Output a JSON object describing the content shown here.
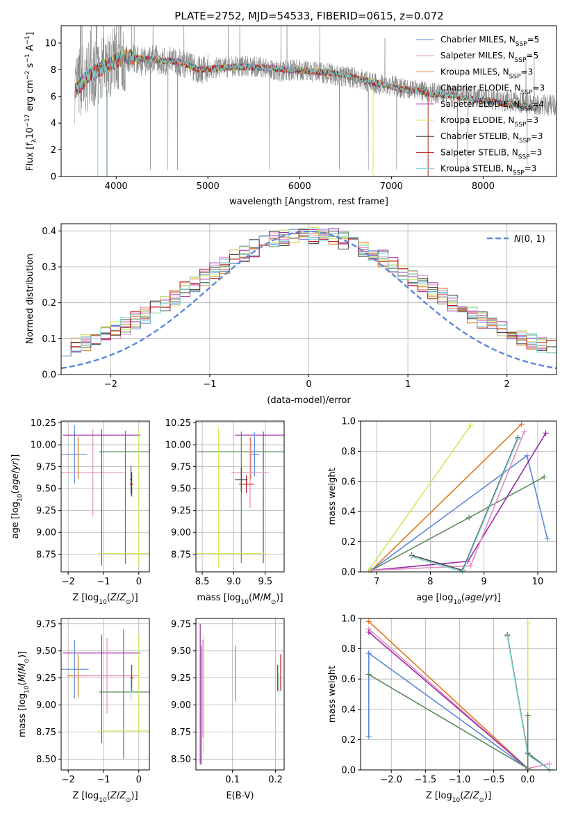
{
  "figure_title": "PLATE=2752, MJD=54533, FIBERID=0615, z=0.072",
  "colors": {
    "chabrier_miles": "#5b86dd",
    "salpeter_miles": "#e38cc0",
    "kroupa_miles": "#e0771c",
    "chabrier_elodie": "#5a8a5a",
    "salpeter_elodie": "#9b2aa8",
    "kroupa_elodie": "#cfe85a",
    "chabrier_stelib": "#444444",
    "salpeter_stelib": "#c01818",
    "kroupa_stelib": "#7fd6d6",
    "data": "#808080",
    "normal": "#5b86dd"
  },
  "chart_data": [
    {
      "id": "spectrum",
      "type": "line",
      "title": "PLATE=2752, MJD=54533, FIBERID=0615, z=0.072",
      "xlabel": "wavelength [Angstrom, rest frame]",
      "ylabel": "Flux [f_λ 10^-17 erg cm^-2 s^-1 A^-1]",
      "xlim": [
        3400,
        8800
      ],
      "ylim": [
        0,
        11.3
      ],
      "xticks": [
        "4000",
        "5000",
        "6000",
        "7000",
        "8000"
      ],
      "yticks": [
        "0",
        "2",
        "4",
        "6",
        "8",
        "10"
      ],
      "grid": false,
      "legend_position": "upper-right",
      "data_series": {
        "name": "data",
        "x": [
          3550,
          3600,
          3700,
          3800,
          3900,
          4000,
          4100,
          4200,
          4300,
          4400,
          4500,
          4600,
          4700,
          4800,
          4900,
          5000,
          5200,
          5400,
          5600,
          5800,
          6000,
          6200,
          6400,
          6600,
          6800,
          7000,
          7200,
          7400,
          7600,
          7800,
          8000,
          8200,
          8400,
          8600,
          8800
        ],
        "y": [
          6.5,
          7.0,
          7.5,
          7.8,
          8.2,
          9.0,
          8.8,
          8.8,
          8.6,
          8.9,
          8.6,
          8.7,
          8.5,
          8.3,
          8.0,
          8.1,
          8.2,
          8.3,
          8.2,
          7.9,
          8.0,
          7.8,
          7.6,
          7.4,
          7.0,
          6.8,
          6.5,
          6.3,
          6.2,
          6.1,
          5.9,
          5.7,
          5.5,
          5.4,
          5.3
        ]
      },
      "model_x": [
        3550,
        3700,
        3900,
        4100,
        4300,
        4500,
        4700,
        4900,
        5100,
        5300,
        5500,
        5700,
        5900,
        6100,
        6300,
        6500,
        6700,
        6900,
        7100,
        7300,
        7420
      ],
      "model_y": [
        6.4,
        7.6,
        8.3,
        9.0,
        8.8,
        8.7,
        8.6,
        8.0,
        8.1,
        8.2,
        8.2,
        8.1,
        8.0,
        7.9,
        7.8,
        7.6,
        7.2,
        6.9,
        6.6,
        6.4,
        6.2
      ],
      "long_model_x": [
        7420,
        7600,
        7800,
        8000,
        8200,
        8400,
        8600
      ],
      "long_model_y": [
        6.2,
        6.1,
        5.9,
        5.7,
        5.5,
        5.3,
        5.1
      ],
      "series": [
        {
          "name": "Chabrier MILES, N_SSP=5",
          "label_main": "Chabrier MILES, N",
          "label_sub": "SSP",
          "label_tail": "=5",
          "color": "#5b86dd",
          "extends_red": false
        },
        {
          "name": "Salpeter MILES, N_SSP=5",
          "label_main": "Salpeter MILES, N",
          "label_sub": "SSP",
          "label_tail": "=5",
          "color": "#e38cc0",
          "extends_red": false
        },
        {
          "name": "Kroupa MILES, N_SSP=3",
          "label_main": "Kroupa MILES, N",
          "label_sub": "SSP",
          "label_tail": "=3",
          "color": "#e0771c",
          "extends_red": false
        },
        {
          "name": "Chabrier ELODIE, N_SSP=3",
          "label_main": "Chabrier ELODIE, N",
          "label_sub": "SSP",
          "label_tail": "=3",
          "color": "#5a8a5a",
          "extends_red": true
        },
        {
          "name": "Salpeter ELODIE, N_SSP=4",
          "label_main": "Salpeter ELODIE, N",
          "label_sub": "SSP",
          "label_tail": "=4",
          "color": "#9b2aa8",
          "extends_red": true
        },
        {
          "name": "Kroupa ELODIE, N_SSP=3",
          "label_main": "Kroupa ELODIE, N",
          "label_sub": "SSP",
          "label_tail": "=3",
          "color": "#cfe85a",
          "extends_red": true
        },
        {
          "name": "Chabrier STELIB, N_SSP=3",
          "label_main": "Chabrier STELIB, N",
          "label_sub": "SSP",
          "label_tail": "=3",
          "color": "#444444",
          "extends_red": true
        },
        {
          "name": "Salpeter STELIB, N_SSP=3",
          "label_main": "Salpeter STELIB, N",
          "label_sub": "SSP",
          "label_tail": "=3",
          "color": "#c01818",
          "extends_red": true
        },
        {
          "name": "Kroupa STELIB, N_SSP=3",
          "label_main": "Kroupa STELIB, N",
          "label_sub": "SSP",
          "label_tail": "=3",
          "color": "#7fd6d6",
          "extends_red": true
        }
      ]
    },
    {
      "id": "residuals",
      "type": "histogram",
      "xlabel": "(data-model)/error",
      "ylabel": "Normed distribution",
      "xlim": [
        -2.5,
        2.5
      ],
      "ylim": [
        0,
        0.42
      ],
      "xticks": [
        "−2",
        "−1",
        "0",
        "1",
        "2"
      ],
      "yticks": [
        "0.0",
        "0.1",
        "0.2",
        "0.3",
        "0.4"
      ],
      "grid": true,
      "legend_position": "upper-right",
      "legend": "N(0,1)",
      "bin_edges_range": [
        -2.5,
        2.5
      ],
      "bins": 50,
      "reference_curve": {
        "name": "N(0,1)",
        "mean": 0,
        "sigma": 1
      }
    },
    {
      "id": "age_vs_Z",
      "type": "errorbar",
      "xlabel": "Z [log10(Z/Z_sun)]",
      "ylabel": "age [log10(age/yr)]",
      "xlim": [
        -2.2,
        0.3
      ],
      "ylim": [
        8.55,
        10.27
      ],
      "xticks": [
        "−2",
        "−1",
        "0"
      ],
      "yticks": [
        "8.75",
        "9.00",
        "9.25",
        "9.50",
        "9.75",
        "10.00",
        "10.25"
      ],
      "grid": true,
      "points": [
        {
          "series": "Chabrier MILES",
          "x": -1.82,
          "y": 9.89,
          "xerr": 0.36,
          "yerr": 0.33
        },
        {
          "series": "Kroupa MILES",
          "x": -1.72,
          "y": 9.85,
          "xerr": 0.0,
          "yerr": 0.24
        },
        {
          "series": "Salpeter MILES",
          "x": -1.3,
          "y": 9.68,
          "xerr": 0.9,
          "yerr": 0.5
        },
        {
          "series": "Salpeter ELODIE",
          "x": -1.05,
          "y": 10.11,
          "xerr": 1.1,
          "yerr": 0.0
        },
        {
          "series": "Salpeter ELODIE 2",
          "x": -1.05,
          "y": 9.4,
          "xerr": 0.0,
          "yerr": 0.78
        },
        {
          "series": "Chabrier ELODIE",
          "x": -0.38,
          "y": 9.92,
          "xerr": 0.75,
          "yerr": 0.0
        },
        {
          "series": "Chabrier ELODIE 2",
          "x": -0.38,
          "y": 9.4,
          "xerr": 0.0,
          "yerr": 0.76
        },
        {
          "series": "Kroupa ELODIE",
          "x": -0.05,
          "y": 8.76,
          "xerr": 1.1,
          "yerr": 0.0
        },
        {
          "series": "Kroupa ELODIE 2",
          "x": 0.0,
          "y": 9.4,
          "xerr": 0.0,
          "yerr": 0.78
        },
        {
          "series": "Salpeter STELIB",
          "x": -0.2,
          "y": 9.55,
          "xerr": 0.05,
          "yerr": 0.14
        },
        {
          "series": "Chabrier STELIB",
          "x": -0.22,
          "y": 9.6,
          "xerr": 0.03,
          "yerr": 0.16
        }
      ]
    },
    {
      "id": "age_vs_mass",
      "type": "errorbar",
      "xlabel": "mass [log10(M/M_sun)]",
      "ylabel": "",
      "xlim": [
        8.4,
        9.8
      ],
      "ylim": [
        8.55,
        10.27
      ],
      "xticks": [
        "8.5",
        "9.0",
        "9.5"
      ],
      "yticks": [
        "8.75",
        "9.00",
        "9.25",
        "9.50",
        "9.75",
        "10.00",
        "10.25"
      ],
      "grid": true,
      "points": [
        {
          "series": "Salpeter ELODIE",
          "x": 9.47,
          "y": 10.11,
          "xerr": 0.45,
          "yerr": 0.0
        },
        {
          "series": "Salpeter ELODIE 2",
          "x": 9.47,
          "y": 9.4,
          "xerr": 0.0,
          "yerr": 0.75
        },
        {
          "series": "Chabrier ELODIE",
          "x": 9.12,
          "y": 9.92,
          "xerr": 0.7,
          "yerr": 0.0
        },
        {
          "series": "Chabrier ELODIE 2",
          "x": 9.12,
          "y": 9.4,
          "xerr": 0.0,
          "yerr": 0.75
        },
        {
          "series": "Chabrier MILES",
          "x": 9.33,
          "y": 9.89,
          "xerr": 0.08,
          "yerr": 0.25
        },
        {
          "series": "Kroupa MILES",
          "x": 9.27,
          "y": 9.85,
          "xerr": 0.0,
          "yerr": 0.24
        },
        {
          "series": "Salpeter MILES",
          "x": 9.26,
          "y": 9.68,
          "xerr": 0.3,
          "yerr": 0.4
        },
        {
          "series": "Kroupa ELODIE",
          "x": 8.76,
          "y": 8.76,
          "xerr": 0.75,
          "yerr": 0.0
        },
        {
          "series": "Kroupa ELODIE 2",
          "x": 8.76,
          "y": 9.4,
          "xerr": 0.0,
          "yerr": 0.8
        },
        {
          "series": "Salpeter STELIB",
          "x": 9.2,
          "y": 9.55,
          "xerr": 0.12,
          "yerr": 0.1
        },
        {
          "series": "Chabrier STELIB",
          "x": 9.12,
          "y": 9.6,
          "xerr": 0.1,
          "yerr": 0.14
        }
      ]
    },
    {
      "id": "mass_weight_vs_age",
      "type": "line",
      "xlabel": "age [log10(age/yr)]",
      "ylabel": "mass weight",
      "xlim": [
        6.7,
        10.35
      ],
      "ylim": [
        0,
        1.0
      ],
      "xticks": [
        "7",
        "8",
        "9",
        "10"
      ],
      "yticks": [
        "0.0",
        "0.2",
        "0.4",
        "0.6",
        "0.8",
        "1.0"
      ],
      "grid": true,
      "series": [
        {
          "name": "Kroupa ELODIE",
          "x": [
            6.85,
            8.75
          ],
          "y": [
            0.01,
            0.97
          ]
        },
        {
          "name": "Kroupa MILES",
          "x": [
            6.9,
            9.7
          ],
          "y": [
            0.01,
            0.98
          ]
        },
        {
          "name": "Chabrier MILES",
          "x": [
            6.9,
            9.8,
            10.18
          ],
          "y": [
            0.01,
            0.77,
            0.22
          ]
        },
        {
          "name": "Chabrier ELODIE",
          "x": [
            6.9,
            8.72,
            10.12
          ],
          "y": [
            0.01,
            0.36,
            0.63
          ]
        },
        {
          "name": "Salpeter ELODIE",
          "x": [
            6.9,
            8.7,
            10.15
          ],
          "y": [
            0.01,
            0.07,
            0.92
          ]
        },
        {
          "name": "Salpeter MILES",
          "x": [
            6.9,
            8.75,
            9.75
          ],
          "y": [
            0.01,
            0.04,
            0.93
          ]
        },
        {
          "name": "Chabrier STELIB",
          "x": [
            7.65,
            8.6,
            9.63
          ],
          "y": [
            0.11,
            0.01,
            0.89
          ]
        },
        {
          "name": "Kroupa STELIB",
          "x": [
            7.65,
            8.6,
            9.63
          ],
          "y": [
            0.1,
            0.0,
            0.88
          ]
        }
      ]
    },
    {
      "id": "mass_vs_Z",
      "type": "errorbar",
      "xlabel": "Z [log10(Z/Z_sun)]",
      "ylabel": "mass [log10(M/M_sun)]",
      "xlim": [
        -2.2,
        0.3
      ],
      "ylim": [
        8.4,
        9.8
      ],
      "xticks": [
        "−2",
        "−1",
        "0"
      ],
      "yticks": [
        "8.50",
        "8.75",
        "9.00",
        "9.25",
        "9.50",
        "9.75"
      ],
      "grid": true,
      "points": [
        {
          "series": "Salpeter ELODIE",
          "x": -1.05,
          "y": 9.48,
          "xerr": 1.1,
          "yerr": 0.0
        },
        {
          "series": "Salpeter ELODIE 2",
          "x": -1.05,
          "y": 9.15,
          "xerr": 0.0,
          "yerr": 0.5
        },
        {
          "series": "Chabrier MILES",
          "x": -1.82,
          "y": 9.33,
          "xerr": 0.4,
          "yerr": 0.27
        },
        {
          "series": "Kroupa MILES",
          "x": -1.72,
          "y": 9.27,
          "xerr": 0.3,
          "yerr": 0.2
        },
        {
          "series": "Salpeter MILES",
          "x": -0.9,
          "y": 9.27,
          "xerr": 0.9,
          "yerr": 0.35
        },
        {
          "series": "Chabrier ELODIE",
          "x": -0.38,
          "y": 9.12,
          "xerr": 0.75,
          "yerr": 0.0
        },
        {
          "series": "Chabrier ELODIE 2",
          "x": -0.43,
          "y": 9.1,
          "xerr": 0.0,
          "yerr": 0.6
        },
        {
          "series": "Kroupa ELODIE",
          "x": -0.05,
          "y": 8.76,
          "xerr": 1.1,
          "yerr": 0.0
        },
        {
          "series": "Kroupa ELODIE 2",
          "x": 0.0,
          "y": 9.2,
          "xerr": 0.0,
          "yerr": 0.45
        },
        {
          "series": "Salpeter STELIB",
          "x": -0.2,
          "y": 9.25,
          "xerr": 0.05,
          "yerr": 0.12
        },
        {
          "series": "Kroupa STELIB",
          "x": -0.22,
          "y": 9.15,
          "xerr": 0.03,
          "yerr": 0.1
        }
      ]
    },
    {
      "id": "mass_vs_ebv",
      "type": "errorbar",
      "xlabel": "E(B-V)",
      "ylabel": "",
      "xlim": [
        0.015,
        0.22
      ],
      "ylim": [
        8.4,
        9.8
      ],
      "xticks": [
        "0.1",
        "0.2"
      ],
      "xtick_values": [
        0.1,
        0.2
      ],
      "yticks": [
        "8.50",
        "8.75",
        "9.00",
        "9.25",
        "9.50",
        "9.75"
      ],
      "grid": true,
      "points": [
        {
          "series": "Salpeter ELODIE",
          "x": 0.025,
          "y": 9.1,
          "xerr": 0.0,
          "yerr": 0.65
        },
        {
          "series": "Chabrier ELODIE",
          "x": 0.028,
          "y": 9.0,
          "xerr": 0.0,
          "yerr": 0.55
        },
        {
          "series": "Kroupa ELODIE",
          "x": 0.033,
          "y": 9.1,
          "xerr": 0.0,
          "yerr": 0.55
        },
        {
          "series": "Salpeter MILES",
          "x": 0.031,
          "y": 9.15,
          "xerr": 0.0,
          "yerr": 0.45
        },
        {
          "series": "Kroupa MILES",
          "x": 0.107,
          "y": 9.29,
          "xerr": 0.0,
          "yerr": 0.26
        },
        {
          "series": "Chabrier STELIB",
          "x": 0.205,
          "y": 9.25,
          "xerr": 0.0,
          "yerr": 0.12
        },
        {
          "series": "Kroupa STELIB",
          "x": 0.208,
          "y": 9.2,
          "xerr": 0.0,
          "yerr": 0.1
        },
        {
          "series": "Salpeter STELIB",
          "x": 0.212,
          "y": 9.3,
          "xerr": 0.0,
          "yerr": 0.17
        }
      ]
    },
    {
      "id": "mass_weight_vs_Z",
      "type": "line",
      "xlabel": "Z [log10(Z/Z_sun)]",
      "ylabel": "mass weight",
      "xlim": [
        -2.45,
        0.42
      ],
      "ylim": [
        0,
        1.0
      ],
      "xticks": [
        "−2.0",
        "−1.5",
        "−1.0",
        "−0.5",
        "0.0"
      ],
      "xtick_values": [
        -2.0,
        -1.5,
        -1.0,
        -0.5,
        0.0
      ],
      "yticks": [
        "0.0",
        "0.2",
        "0.4",
        "0.6",
        "0.8",
        "1.0"
      ],
      "grid": true,
      "series": [
        {
          "name": "Kroupa MILES",
          "x": [
            -2.33,
            0.0
          ],
          "y": [
            0.98,
            0.01
          ]
        },
        {
          "name": "Salpeter MILES",
          "x": [
            -2.33,
            0.0,
            0.32
          ],
          "y": [
            0.93,
            0.01,
            0.04
          ]
        },
        {
          "name": "Salpeter ELODIE",
          "x": [
            -2.33,
            0.0
          ],
          "y": [
            0.91,
            0.01
          ]
        },
        {
          "name": "Chabrier MILES",
          "x": [
            -2.33,
            -2.33,
            0.0
          ],
          "y": [
            0.22,
            0.77,
            0.01
          ]
        },
        {
          "name": "Chabrier ELODIE",
          "x": [
            -2.33,
            0.0
          ],
          "y": [
            0.63,
            0.01
          ]
        },
        {
          "name": "Chabrier STELIB",
          "x": [
            -0.3,
            0.0,
            0.32
          ],
          "y": [
            0.89,
            0.11,
            0.0
          ]
        },
        {
          "name": "Kroupa STELIB",
          "x": [
            -0.3,
            0.0,
            0.32
          ],
          "y": [
            0.88,
            0.1,
            0.0
          ]
        },
        {
          "name": "Kroupa ELODIE",
          "x": [
            0.0,
            0.0
          ],
          "y": [
            0.97,
            0.0
          ]
        },
        {
          "name": "Chabrier ELODIE 2",
          "x": [
            0.0,
            0.0
          ],
          "y": [
            0.36,
            0.01
          ]
        }
      ]
    }
  ]
}
